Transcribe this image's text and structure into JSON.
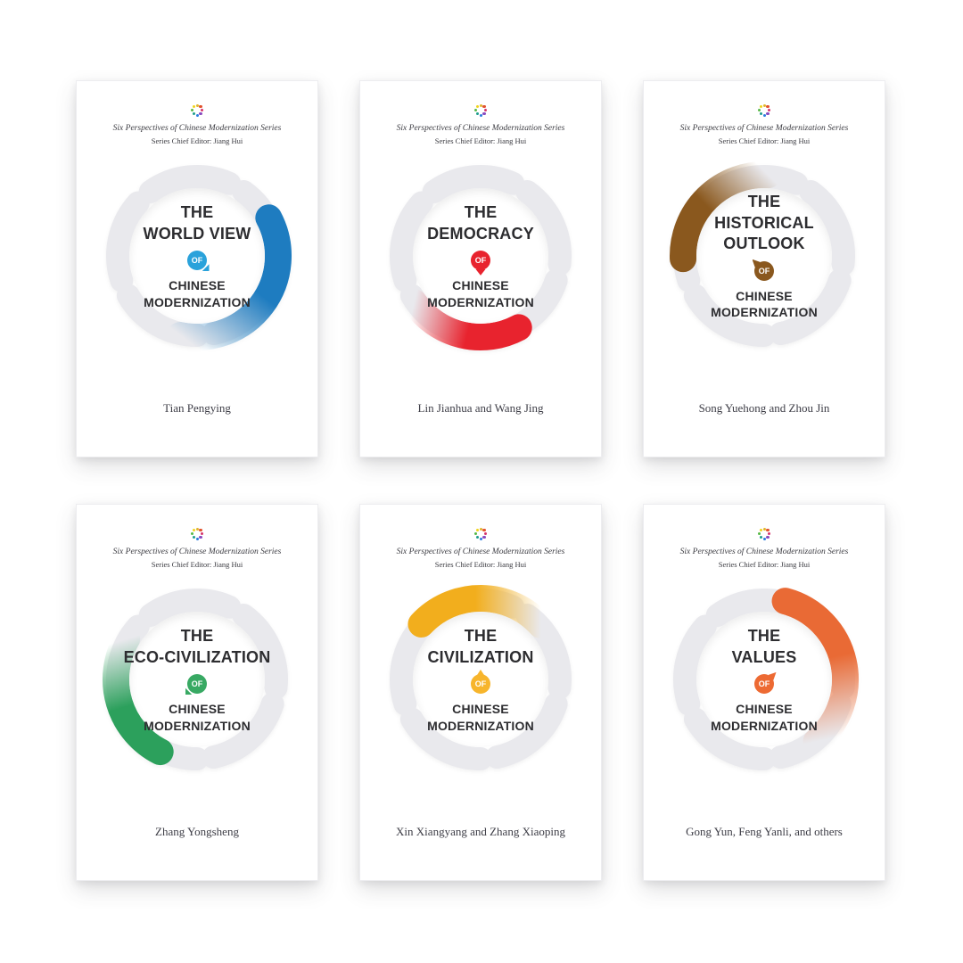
{
  "series": {
    "title": "Six Perspectives of Chinese Modernization Series",
    "editor": "Series Chief Editor: Jiang Hui",
    "of_label": "OF",
    "subject_lines": [
      "CHINESE",
      "MODERNIZATION"
    ],
    "logo_colors": [
      "#e2b42e",
      "#e2522e",
      "#d6336c",
      "#8a4bbf",
      "#2b7de0",
      "#1f9e8c",
      "#57b947",
      "#f0d41e"
    ],
    "ring_gray": "#e9e9ed"
  },
  "books": [
    {
      "title_lines": [
        "THE",
        "WORLD VIEW"
      ],
      "author": "Tian Pengying",
      "accent": "#2aa2db",
      "arc_color": "#1e7cc0",
      "badge_tail": "bottom-right",
      "arc": {
        "start": 62,
        "end": 192
      }
    },
    {
      "title_lines": [
        "THE",
        "DEMOCRACY"
      ],
      "author": "Lin Jianhua and Wang Jing",
      "accent": "#e8232e",
      "arc_color": "#e8232e",
      "badge_tail": "bottom",
      "arc": {
        "start": 152,
        "end": 235
      }
    },
    {
      "title_lines": [
        "THE",
        "HISTORICAL",
        "OUTLOOK"
      ],
      "author": "Song Yuehong and Zhou Jin",
      "accent": "#8a581e",
      "arc_color": "#8a581e",
      "badge_tail": "top-left",
      "arc": {
        "start": 268,
        "end": 363
      }
    },
    {
      "title_lines": [
        "THE",
        "ECO-CIVILIZATION"
      ],
      "author": "Zhang Yongsheng",
      "accent": "#38a963",
      "arc_color": "#2ca05c",
      "badge_tail": "bottom-left",
      "arc": {
        "start": 207,
        "end": 300
      }
    },
    {
      "title_lines": [
        "THE",
        "CIVILIZATION"
      ],
      "author": "Xin Xiangyang and Zhang Xiaoping",
      "accent": "#f7b52c",
      "arc_color": "#f2ae1d",
      "badge_tail": "top",
      "arc": {
        "start": 313,
        "end": 408
      }
    },
    {
      "title_lines": [
        "THE",
        "VALUES"
      ],
      "author": "Gong Yun, Feng Yanli, and others",
      "accent": "#ed6a33",
      "arc_color": "#e96a35",
      "badge_tail": "top-right",
      "arc": {
        "start": 15,
        "end": 140
      }
    }
  ]
}
